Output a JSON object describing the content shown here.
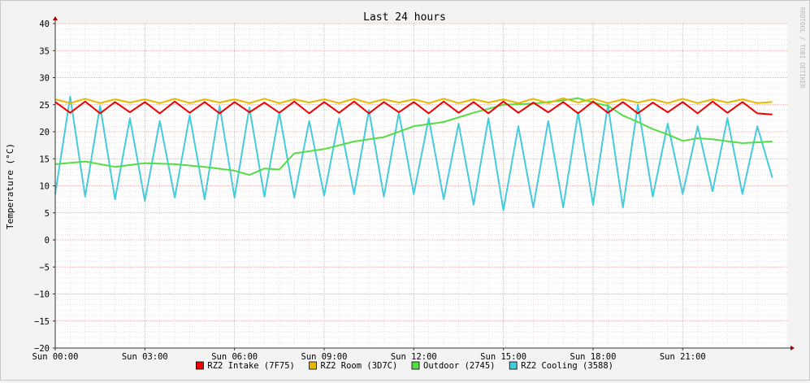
{
  "chart_data": {
    "type": "line",
    "title": "Last 24 hours",
    "ylabel": "Temperature (°C)",
    "xlabel": "",
    "watermark": "RRDTOOL / TOBI OETIKER",
    "ylim": [
      -20,
      40
    ],
    "yticks": [
      40,
      35,
      30,
      25,
      20,
      15,
      10,
      5,
      0,
      -5,
      -10,
      -15,
      -20
    ],
    "xlim_hours": [
      0,
      24.5
    ],
    "xticks": [
      {
        "hour": 0,
        "label": "Sun 00:00"
      },
      {
        "hour": 3,
        "label": "Sun 03:00"
      },
      {
        "hour": 6,
        "label": "Sun 06:00"
      },
      {
        "hour": 9,
        "label": "Sun 09:00"
      },
      {
        "hour": 12,
        "label": "Sun 12:00"
      },
      {
        "hour": 15,
        "label": "Sun 15:00"
      },
      {
        "hour": 18,
        "label": "Sun 18:00"
      },
      {
        "hour": 21,
        "label": "Sun 21:00"
      }
    ],
    "grid": true,
    "legend": "bottom",
    "series": [
      {
        "name": "RZ2 Intake (7F75)",
        "color": "#ee0000",
        "x": [
          0,
          0.5,
          1,
          1.5,
          2,
          2.5,
          3,
          3.5,
          4,
          4.5,
          5,
          5.5,
          6,
          6.5,
          7,
          7.5,
          8,
          8.5,
          9,
          9.5,
          10,
          10.5,
          11,
          11.5,
          12,
          12.5,
          13,
          13.5,
          14,
          14.5,
          15,
          15.5,
          16,
          16.5,
          17,
          17.5,
          18,
          18.5,
          19,
          19.5,
          20,
          20.5,
          21,
          21.5,
          22,
          22.5,
          23,
          23.5,
          24
        ],
        "y": [
          25.5,
          23.5,
          25.6,
          23.4,
          25.5,
          23.6,
          25.5,
          23.4,
          25.6,
          23.5,
          25.5,
          23.4,
          25.5,
          23.6,
          25.4,
          23.5,
          25.6,
          23.4,
          25.5,
          23.5,
          25.6,
          23.4,
          25.5,
          23.6,
          25.5,
          23.4,
          25.6,
          23.5,
          25.5,
          23.4,
          25.6,
          23.5,
          25.4,
          23.6,
          25.5,
          23.4,
          25.6,
          23.5,
          25.5,
          23.4,
          25.4,
          23.6,
          25.5,
          23.4,
          25.6,
          23.5,
          25.5,
          23.4,
          23.2
        ]
      },
      {
        "name": "RZ2 Room (3D7C)",
        "color": "#e6b800",
        "x": [
          0,
          0.5,
          1,
          1.5,
          2,
          2.5,
          3,
          3.5,
          4,
          4.5,
          5,
          5.5,
          6,
          6.5,
          7,
          7.5,
          8,
          8.5,
          9,
          9.5,
          10,
          10.5,
          11,
          11.5,
          12,
          12.5,
          13,
          13.5,
          14,
          14.5,
          15,
          15.5,
          16,
          16.5,
          17,
          17.5,
          18,
          18.5,
          19,
          19.5,
          20,
          20.5,
          21,
          21.5,
          22,
          22.5,
          23,
          23.5,
          24
        ],
        "y": [
          26.0,
          25.3,
          26.1,
          25.3,
          26.0,
          25.4,
          26.0,
          25.3,
          26.1,
          25.3,
          26.0,
          25.4,
          26.0,
          25.3,
          26.1,
          25.3,
          26.0,
          25.4,
          26.0,
          25.3,
          26.1,
          25.3,
          26.0,
          25.4,
          26.0,
          25.3,
          26.1,
          25.3,
          26.0,
          25.4,
          26.0,
          25.3,
          26.1,
          25.3,
          26.2,
          25.4,
          26.1,
          25.3,
          26.0,
          25.4,
          26.0,
          25.3,
          26.1,
          25.3,
          26.0,
          25.4,
          26.0,
          25.3,
          25.5
        ]
      },
      {
        "name": "Outdoor (2745)",
        "color": "#55dd44",
        "x": [
          0,
          1,
          2,
          3,
          4,
          5,
          6,
          6.5,
          7,
          7.5,
          8,
          9,
          10,
          11,
          12,
          13,
          14,
          15,
          16,
          17,
          17.5,
          18,
          18.5,
          19,
          19.5,
          20,
          20.5,
          21,
          21.5,
          22,
          23,
          24
        ],
        "y": [
          14.0,
          14.5,
          13.5,
          14.2,
          14.0,
          13.5,
          12.8,
          12.0,
          13.2,
          13.0,
          16.0,
          16.8,
          18.2,
          19.0,
          21.0,
          21.8,
          23.5,
          25.0,
          25.2,
          25.8,
          26.2,
          25.4,
          24.8,
          23.0,
          21.8,
          20.5,
          19.5,
          18.3,
          18.8,
          18.6,
          17.9,
          18.2
        ]
      },
      {
        "name": "RZ2 Cooling (3588)",
        "color": "#44ccdd",
        "x": [
          0,
          0.5,
          1,
          1.5,
          2,
          2.5,
          3,
          3.5,
          4,
          4.5,
          5,
          5.5,
          6,
          6.5,
          7,
          7.5,
          8,
          8.5,
          9,
          9.5,
          10,
          10.5,
          11,
          11.5,
          12,
          12.5,
          13,
          13.5,
          14,
          14.5,
          15,
          15.5,
          16,
          16.5,
          17,
          17.5,
          18,
          18.5,
          19,
          19.5,
          20,
          20.5,
          21,
          21.5,
          22,
          22.5,
          23,
          23.5,
          24
        ],
        "y": [
          8.5,
          26.5,
          8.0,
          24.8,
          7.5,
          22.5,
          7.2,
          22.0,
          7.8,
          23.0,
          7.5,
          24.8,
          7.8,
          24.5,
          8.0,
          23.5,
          7.8,
          22.0,
          8.2,
          22.5,
          8.5,
          24.0,
          8.0,
          23.5,
          8.5,
          22.5,
          7.5,
          21.5,
          6.5,
          22.5,
          5.5,
          21.0,
          6.0,
          22.0,
          6.0,
          23.5,
          6.5,
          25.0,
          6.0,
          25.0,
          8.0,
          21.5,
          8.5,
          21.0,
          9.0,
          22.5,
          8.5,
          21.0,
          11.5
        ]
      }
    ]
  }
}
